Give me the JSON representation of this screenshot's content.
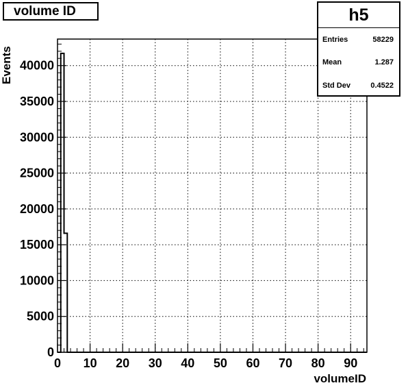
{
  "title": "volume ID",
  "stats": {
    "name": "h5",
    "rows": [
      {
        "label": "Entries",
        "value": "58229"
      },
      {
        "label": "Mean",
        "value": "1.287"
      },
      {
        "label": "Std Dev",
        "value": "0.4522"
      }
    ]
  },
  "chart_data": {
    "type": "bar",
    "histogram": true,
    "xlabel": "volumeID",
    "ylabel": "Events",
    "xlim": [
      0,
      95
    ],
    "ylim": [
      0,
      43700
    ],
    "grid": true,
    "x_ticks": [
      0,
      10,
      20,
      30,
      40,
      50,
      60,
      70,
      80,
      90
    ],
    "y_ticks": [
      0,
      5000,
      10000,
      15000,
      20000,
      25000,
      30000,
      35000,
      40000
    ],
    "bins": [
      {
        "low": 0,
        "high": 1,
        "value": 0
      },
      {
        "low": 1,
        "high": 2,
        "value": 41700
      },
      {
        "low": 2,
        "high": 3,
        "value": 16600
      },
      {
        "low": 3,
        "high": 95,
        "value": 0
      }
    ]
  }
}
